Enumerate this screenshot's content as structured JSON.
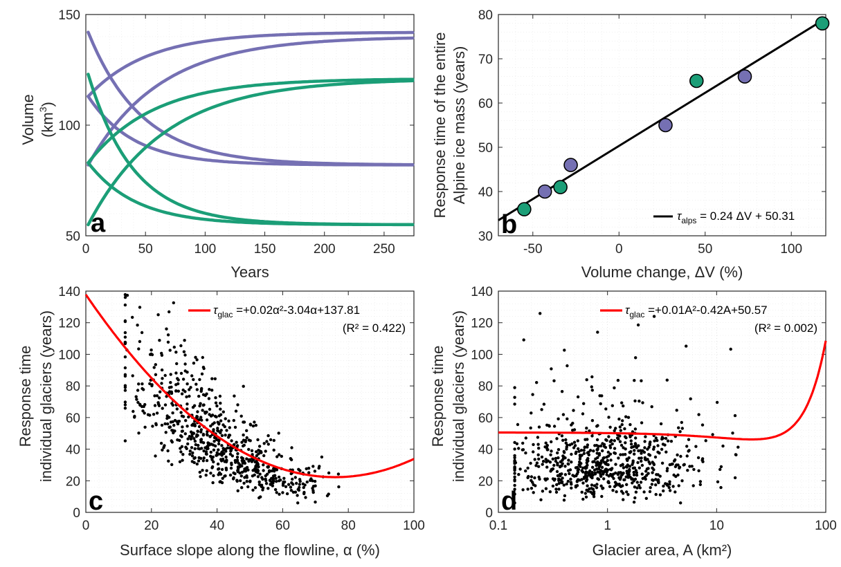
{
  "chart_data": [
    {
      "id": "a",
      "type": "line",
      "panel_label": "a",
      "xlabel": "Years",
      "ylabel_lines": [
        "Volume",
        "(km",
        "3",
        ")"
      ],
      "xlim": [
        0,
        275
      ],
      "ylim": [
        50,
        150
      ],
      "xticks": [
        0,
        50,
        100,
        150,
        200,
        250
      ],
      "yticks": [
        50,
        100,
        150
      ],
      "grid": true,
      "colors": {
        "purple": "#7570b3",
        "green": "#1b9e77"
      },
      "series": [
        {
          "color": "#7570b3",
          "start": 142,
          "end": 82,
          "tau": 45
        },
        {
          "color": "#7570b3",
          "start": 113,
          "end": 82,
          "tau": 38
        },
        {
          "color": "#7570b3",
          "start": 113,
          "end": 142,
          "tau": 50
        },
        {
          "color": "#7570b3",
          "start": 82,
          "end": 140,
          "tau": 60
        },
        {
          "color": "#1b9e77",
          "start": 123,
          "end": 55,
          "tau": 38
        },
        {
          "color": "#1b9e77",
          "start": 83,
          "end": 55,
          "tau": 40
        },
        {
          "color": "#1b9e77",
          "start": 83,
          "end": 121,
          "tau": 55
        },
        {
          "color": "#1b9e77",
          "start": 55,
          "end": 121,
          "tau": 64
        }
      ]
    },
    {
      "id": "b",
      "type": "scatter",
      "panel_label": "b",
      "xlabel": "Volume change, ΔV (%)",
      "ylabel_lines": [
        "Response time of the entire",
        "Alpine ice mass (years)"
      ],
      "xlim": [
        -70,
        120
      ],
      "ylim": [
        30,
        80
      ],
      "xticks": [
        -50,
        0,
        50,
        100
      ],
      "yticks": [
        30,
        40,
        50,
        60,
        70,
        80
      ],
      "grid": true,
      "points": [
        {
          "x": -55,
          "y": 36,
          "color": "#1b9e77"
        },
        {
          "x": -43,
          "y": 40,
          "color": "#7570b3"
        },
        {
          "x": -34,
          "y": 41,
          "color": "#1b9e77"
        },
        {
          "x": -28,
          "y": 46,
          "color": "#7570b3"
        },
        {
          "x": 27,
          "y": 55,
          "color": "#7570b3"
        },
        {
          "x": 45,
          "y": 65,
          "color": "#1b9e77"
        },
        {
          "x": 73,
          "y": 66,
          "color": "#7570b3"
        },
        {
          "x": 118,
          "y": 78,
          "color": "#1b9e77"
        }
      ],
      "fit": {
        "slope": 0.24,
        "intercept": 50.31,
        "color": "#000000"
      },
      "legend": {
        "symbol": "τ",
        "sub": "alps",
        "text": " = 0.24 ΔV + 50.31",
        "position": "bottom-right"
      }
    },
    {
      "id": "c",
      "type": "scatter",
      "panel_label": "c",
      "xlabel": "Surface slope along the flowline, α (%)",
      "ylabel_lines": [
        "Response time",
        "individual glaciers (years)"
      ],
      "xlim": [
        0,
        100
      ],
      "ylim": [
        0,
        140
      ],
      "xticks": [
        0,
        20,
        40,
        60,
        80,
        100
      ],
      "yticks": [
        0,
        20,
        40,
        60,
        80,
        100,
        120,
        140
      ],
      "grid": true,
      "fit": {
        "a": 0.02,
        "b": -3.04,
        "c": 137.81,
        "color": "#ff0000"
      },
      "legend": {
        "symbol": "τ",
        "sub": "glac",
        "text": " =+0.02α²-3.04α+137.81",
        "r2": "(R² = 0.422)",
        "position": "top-right"
      }
    },
    {
      "id": "d",
      "type": "scatter",
      "panel_label": "d",
      "xlabel": "Glacier area, A (km²)",
      "ylabel_lines": [
        "Response time",
        "individual glaciers (years)"
      ],
      "xscale": "log",
      "xlim": [
        0.1,
        100
      ],
      "ylim": [
        0,
        140
      ],
      "xticks": [
        0.1,
        1,
        10,
        100
      ],
      "xtick_labels": [
        "0.1",
        "1",
        "10",
        "100"
      ],
      "yticks": [
        0,
        20,
        40,
        60,
        80,
        100,
        120,
        140
      ],
      "grid": true,
      "fit": {
        "a": 0.01,
        "b": -0.42,
        "c": 50.57,
        "color": "#ff0000"
      },
      "legend": {
        "symbol": "τ",
        "sub": "glac",
        "text": " =+0.01A²-0.42A+50.57",
        "r2": "(R² = 0.002)",
        "position": "top-right"
      }
    }
  ]
}
